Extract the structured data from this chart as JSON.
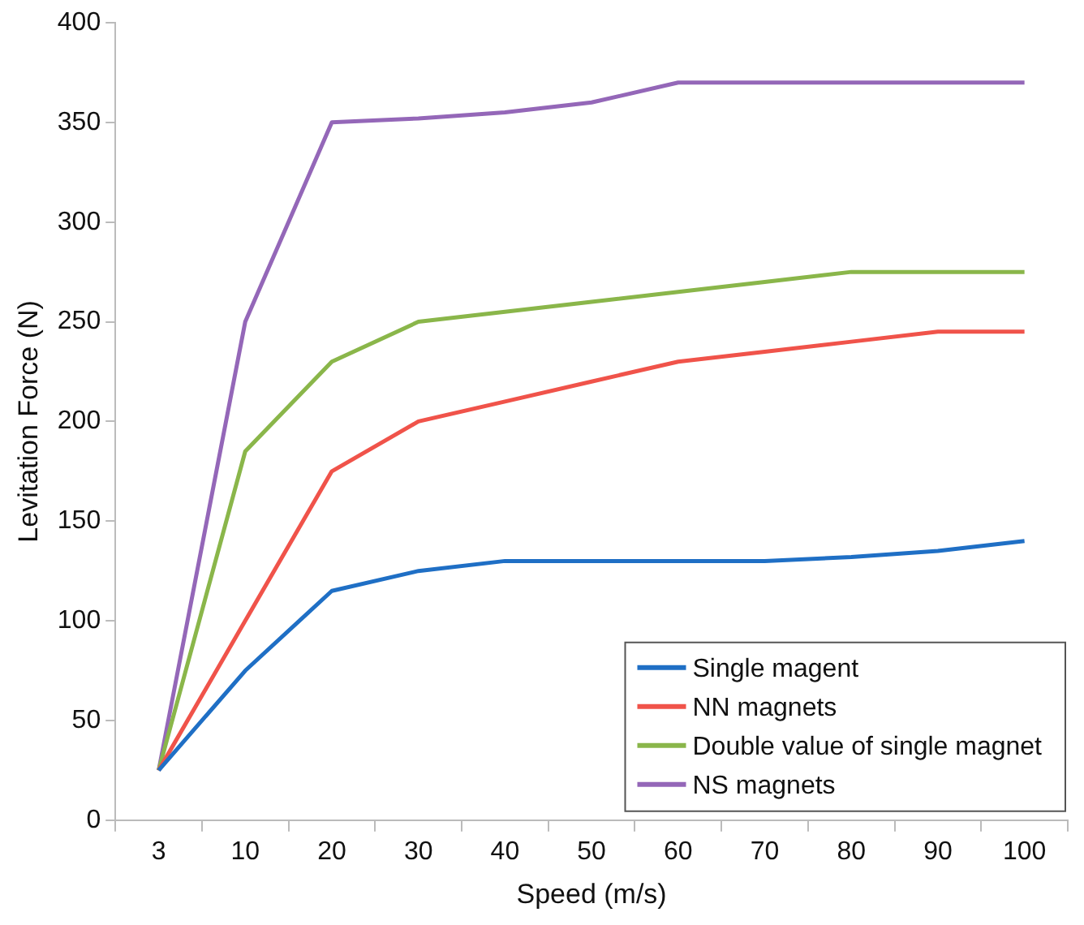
{
  "chart_data": {
    "type": "line",
    "xlabel": "Speed (m/s)",
    "ylabel": "Levitation Force (N)",
    "categories": [
      "3",
      "10",
      "20",
      "30",
      "40",
      "50",
      "60",
      "70",
      "80",
      "90",
      "100"
    ],
    "series": [
      {
        "name": "Single magent",
        "color": "#1f6fc5",
        "values": [
          25,
          75,
          115,
          125,
          130,
          130,
          130,
          130,
          132,
          135,
          140
        ]
      },
      {
        "name": "NN magnets",
        "color": "#f0534a",
        "values": [
          25,
          100,
          175,
          200,
          210,
          220,
          230,
          235,
          240,
          245,
          245
        ]
      },
      {
        "name": "Double value of single magnet",
        "color": "#8ab64a",
        "values": [
          25,
          185,
          230,
          250,
          255,
          260,
          265,
          270,
          275,
          275,
          275
        ]
      },
      {
        "name": "NS magnets",
        "color": "#9467b8",
        "values": [
          25,
          250,
          350,
          352,
          355,
          360,
          370,
          370,
          370,
          370,
          370
        ]
      }
    ],
    "ylim": [
      0,
      400
    ],
    "yticks": [
      0,
      50,
      100,
      150,
      200,
      250,
      300,
      350,
      400
    ],
    "grid": false,
    "legend": "bottom right",
    "marker": "none",
    "line_style": "solid"
  }
}
